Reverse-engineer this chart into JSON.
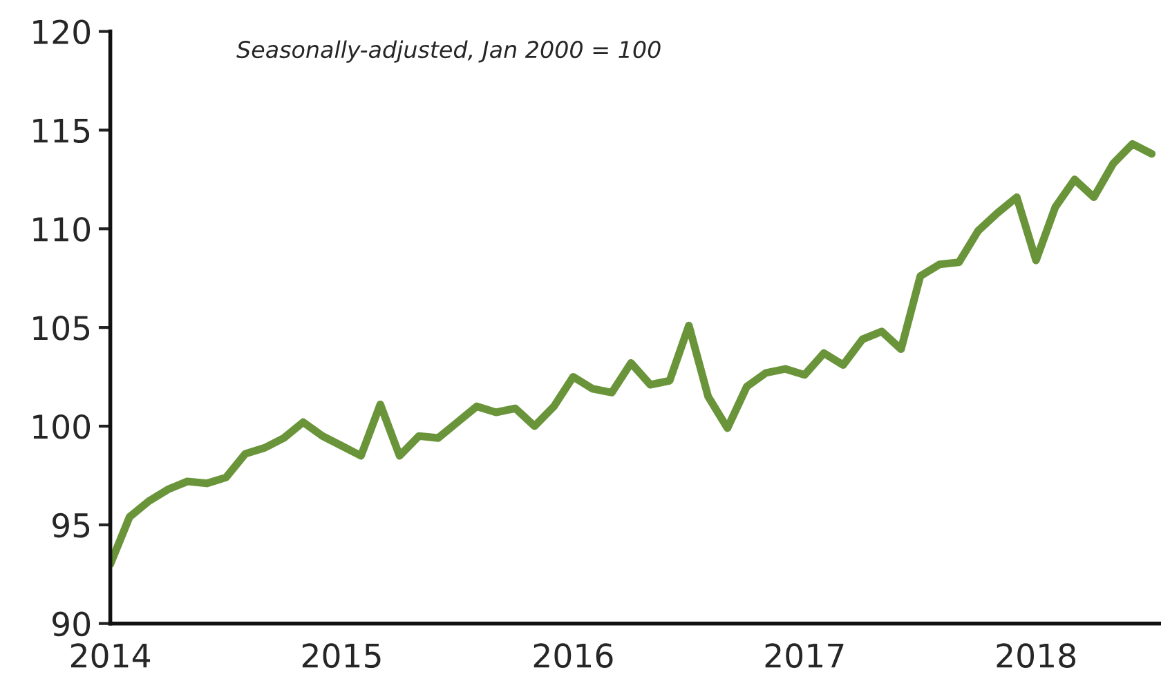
{
  "chart_data": {
    "type": "line",
    "annotations": [
      "Seasonally-adjusted, Jan 2000 = 100"
    ],
    "x": [
      2014.0,
      2014.0833,
      2014.1667,
      2014.25,
      2014.3333,
      2014.4167,
      2014.5,
      2014.5833,
      2014.6667,
      2014.75,
      2014.8333,
      2014.9167,
      2015.0,
      2015.0833,
      2015.1667,
      2015.25,
      2015.3333,
      2015.4167,
      2015.5,
      2015.5833,
      2015.6667,
      2015.75,
      2015.8333,
      2015.9167,
      2016.0,
      2016.0833,
      2016.1667,
      2016.25,
      2016.3333,
      2016.4167,
      2016.5,
      2016.5833,
      2016.6667,
      2016.75,
      2016.8333,
      2016.9167,
      2017.0,
      2017.0833,
      2017.1667,
      2017.25,
      2017.3333,
      2017.4167,
      2017.5,
      2017.5833,
      2017.6667,
      2017.75,
      2017.8333,
      2017.9167,
      2018.0,
      2018.0833,
      2018.1667,
      2018.25,
      2018.3333,
      2018.4167,
      2018.5
    ],
    "series": [
      {
        "color": "#6a9439",
        "values": [
          93.0,
          95.4,
          96.2,
          96.8,
          97.2,
          97.1,
          97.4,
          98.6,
          98.9,
          99.4,
          100.2,
          99.5,
          99.0,
          98.5,
          101.1,
          98.5,
          99.5,
          99.4,
          100.2,
          101.0,
          100.7,
          100.9,
          100.0,
          101.0,
          102.5,
          101.9,
          101.7,
          103.2,
          102.1,
          102.3,
          105.1,
          101.5,
          99.9,
          102.0,
          102.7,
          102.9,
          102.6,
          103.7,
          103.1,
          104.4,
          104.8,
          103.9,
          107.6,
          108.2,
          108.3,
          109.9,
          110.8,
          111.6,
          108.4,
          111.1,
          112.5,
          111.6,
          113.3,
          114.3,
          113.8
        ]
      }
    ],
    "xlim": [
      2014,
      2018.54
    ],
    "xticks": [
      2014,
      2015,
      2016,
      2017,
      2018
    ],
    "ylim": [
      90,
      120
    ],
    "yticks": [
      90,
      95,
      100,
      105,
      110,
      115,
      120
    ],
    "grid": false,
    "marker": "none",
    "line_style": "solid"
  }
}
